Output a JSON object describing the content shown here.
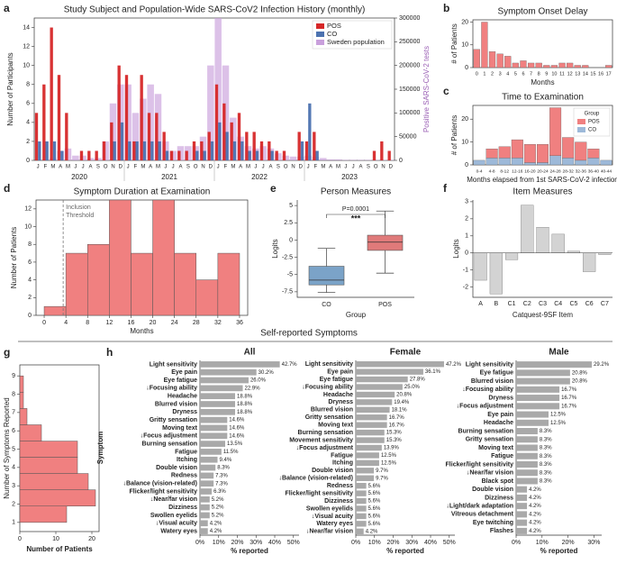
{
  "section_title": "Self-reported Symptoms",
  "chart_data": [
    {
      "panel": "a",
      "type": "bar",
      "title": "Study Subject and Population-Wide SARS-CoV2 Infection History (monthly)",
      "categories": [
        "J",
        "F",
        "M",
        "A",
        "M",
        "J",
        "J",
        "A",
        "S",
        "O",
        "N",
        "D",
        "J",
        "F",
        "M",
        "A",
        "M",
        "J",
        "J",
        "A",
        "S",
        "O",
        "N",
        "D",
        "J",
        "F",
        "M",
        "A",
        "M",
        "J",
        "J",
        "A",
        "S",
        "O",
        "N",
        "D",
        "J",
        "F",
        "M",
        "A",
        "M",
        "J",
        "J",
        "A",
        "S",
        "O",
        "N",
        "D"
      ],
      "group_labels": [
        "2020",
        "2021",
        "2022",
        "2023"
      ],
      "series": [
        {
          "name": "POS",
          "color": "#d62728",
          "values": [
            5,
            8,
            14,
            9,
            5,
            0,
            1,
            1,
            1,
            2,
            4,
            10,
            9,
            2,
            9,
            5,
            5,
            3,
            1,
            1,
            1,
            2,
            2,
            3,
            8,
            6,
            4,
            5,
            3,
            3,
            2,
            2,
            1,
            1,
            0,
            3,
            2,
            3,
            0,
            0,
            0,
            0,
            0,
            0,
            0,
            1,
            2,
            1
          ]
        },
        {
          "name": "CO",
          "color": "#4c72b0",
          "values": [
            2,
            2,
            2,
            1,
            0,
            0,
            0,
            0,
            0,
            0,
            2,
            4,
            2,
            2,
            2,
            2,
            2,
            1,
            0,
            0,
            0,
            1,
            1,
            2,
            4,
            3,
            2,
            2,
            1,
            1,
            0,
            1,
            0,
            0,
            0,
            2,
            6,
            1,
            0,
            0,
            0,
            0,
            0,
            0,
            0,
            0,
            0,
            0
          ]
        },
        {
          "name": "Sweden population",
          "color": "#c9a0dc",
          "axis": "y2",
          "values": [
            0,
            0,
            5000,
            20000,
            25000,
            10000,
            10000,
            5000,
            5000,
            40000,
            120000,
            160000,
            160000,
            100000,
            130000,
            160000,
            140000,
            40000,
            20000,
            30000,
            30000,
            30000,
            50000,
            200000,
            300000,
            200000,
            90000,
            50000,
            30000,
            25000,
            30000,
            25000,
            15000,
            10000,
            8000,
            8000,
            10000,
            7000,
            5000,
            2000,
            2000,
            1000,
            1000,
            1000,
            1000,
            1000,
            1000,
            1000
          ]
        }
      ],
      "ylabel": "Number of Participants",
      "y2label": "Positive SARS-CoV-2 tests",
      "ylim": [
        0,
        15
      ],
      "yticks": [
        0,
        2,
        4,
        6,
        8,
        10,
        12,
        14
      ],
      "y2lim": [
        0,
        300000
      ],
      "y2ticks": [
        0,
        50000,
        100000,
        150000,
        200000,
        250000,
        300000
      ],
      "legend": "upper right"
    },
    {
      "panel": "b",
      "type": "bar",
      "title": "Symptom Onset Delay",
      "categories": [
        "0",
        "1",
        "2",
        "3",
        "4",
        "5",
        "6",
        "7",
        "8",
        "9",
        "10",
        "11",
        "12",
        "13",
        "14",
        "15",
        "16",
        "17"
      ],
      "values": [
        8,
        20,
        7,
        6,
        5,
        2,
        3,
        2,
        2,
        1,
        1,
        2,
        2,
        1,
        1,
        0,
        0,
        1
      ],
      "color": "#f08080",
      "xlabel": "Months",
      "ylabel": "# of Patients",
      "ylim": [
        0,
        21
      ],
      "yticks": [
        0,
        10,
        20
      ]
    },
    {
      "panel": "c",
      "type": "bar",
      "stacked": true,
      "title": "Time to Examination",
      "categories": [
        "0-4",
        "4-8",
        "8-12",
        "12-16",
        "16-20",
        "20-24",
        "24-28",
        "28-32",
        "32-36",
        "36-40",
        "40-44"
      ],
      "series": [
        {
          "name": "POS",
          "color": "#f08080",
          "values": [
            0,
            4,
            5,
            8,
            8,
            8,
            21,
            9,
            8,
            4,
            0
          ]
        },
        {
          "name": "CO",
          "color": "#9db9d9",
          "values": [
            2,
            3,
            3,
            3,
            1,
            1,
            4,
            3,
            2,
            3,
            2
          ]
        }
      ],
      "legend_title": "Group",
      "legend": "upper right",
      "xlabel": "Months elapsed from 1st SARS-CoV-2 infection",
      "ylabel": "# of Patients",
      "ylim": [
        0,
        26
      ],
      "yticks": [
        0,
        10,
        20
      ]
    },
    {
      "panel": "d",
      "type": "histogram",
      "title": "Symptom Duration at Examination",
      "bins": [
        0,
        4,
        8,
        12,
        16,
        20,
        24,
        28,
        32,
        36
      ],
      "values": [
        1,
        7,
        8,
        13,
        7,
        13,
        7,
        4,
        7
      ],
      "color": "#f08080",
      "threshold": {
        "value": 3.5,
        "label": [
          "Inclusion",
          "Threshold"
        ]
      },
      "xlabel": "Months",
      "ylabel": "Number of Patients",
      "xlim": [
        -1.5,
        37.5
      ],
      "xticks": [
        0,
        4,
        8,
        12,
        16,
        20,
        24,
        28,
        32,
        36
      ],
      "ylim": [
        0,
        13
      ],
      "yticks": [
        0,
        2,
        4,
        6,
        8,
        10,
        12
      ]
    },
    {
      "panel": "e",
      "type": "box",
      "title": "Person Measures",
      "categories": [
        "CO",
        "POS"
      ],
      "boxes": [
        {
          "min": -7.6,
          "q1": -6.5,
          "median": -5.8,
          "q3": -3.8,
          "max": -1.2,
          "color": "#7ba3c8"
        },
        {
          "min": -4.8,
          "q1": -1.5,
          "median": -0.3,
          "q3": 0.7,
          "max": 4.2,
          "color": "#e07a7a"
        }
      ],
      "annotation": "P=0.0001",
      "significance": "***",
      "xlabel": "Group",
      "ylabel": "Logits",
      "ylim": [
        -8.3,
        5.8
      ],
      "yticks": [
        -7.5,
        -5.0,
        -2.5,
        0.0,
        2.5,
        5.0
      ]
    },
    {
      "panel": "f",
      "type": "bar",
      "title": "Item Measures",
      "categories": [
        "A",
        "B",
        "C1",
        "C2",
        "C3",
        "C4",
        "C5",
        "C6",
        "C7"
      ],
      "values": [
        -1.6,
        -2.4,
        -0.4,
        2.8,
        1.5,
        1.1,
        0.1,
        -1.1,
        -0.1
      ],
      "color": "#d3d3d3",
      "xlabel": "Catquest-9SF Item",
      "ylabel": "Logits",
      "ylim": [
        -2.6,
        3.1
      ],
      "yticks": [
        -2,
        -1,
        0,
        1,
        2,
        3
      ]
    },
    {
      "panel": "g",
      "type": "histogram",
      "orientation": "horizontal",
      "bins": [
        1,
        1.89,
        2.78,
        3.67,
        4.56,
        5.44,
        6.33,
        7.22,
        8.11,
        9
      ],
      "values": [
        13,
        21,
        19,
        16,
        16,
        6,
        2,
        1,
        1
      ],
      "color": "#f08080",
      "xlabel": "Number of Patients",
      "ylabel": "Number of Symptoms Reported",
      "xlim": [
        0,
        22
      ],
      "xticks": [
        0,
        10,
        20
      ],
      "ylim": [
        0.5,
        9.6
      ],
      "yticks": [
        1,
        2,
        3,
        4,
        5,
        6,
        7,
        8,
        9
      ]
    },
    {
      "panel": "h",
      "type": "hbar",
      "title": "All",
      "color": "#a9a9a9",
      "ylabel": "Symptom",
      "xlabel": "% reported",
      "categories": [
        "Light sensitivity",
        "Eye pain",
        "Eye fatigue",
        "↓Focusing ability",
        "Headache",
        "Blurred vision",
        "Dryness",
        "Gritty sensation",
        "Moving text",
        "↓Focus adjustment",
        "Burning sensation",
        "Fatigue",
        "Itching",
        "Double vision",
        "Redness",
        "↓Balance (vision-related)",
        "Flicker/light sensitivity",
        "↓Near/far vision",
        "Dizziness",
        "Swollen eyelids",
        "↓Visual acuity",
        "Watery eyes"
      ],
      "values": [
        42.7,
        30.2,
        26.0,
        22.9,
        18.8,
        18.8,
        18.8,
        14.6,
        14.6,
        14.6,
        13.5,
        11.5,
        9.4,
        8.3,
        7.3,
        7.3,
        6.3,
        5.2,
        5.2,
        5.2,
        4.2,
        4.2
      ],
      "value_labels": [
        "42.7%",
        "30.2%",
        "26.0%",
        "22.9%",
        "18.8%",
        "18.8%",
        "18.8%",
        "14.6%",
        "14.6%",
        "14.6%",
        "13.5%",
        "11.5%",
        "9.4%",
        "8.3%",
        "7.3%",
        "7.3%",
        "6.3%",
        "5.2%",
        "5.2%",
        "5.2%",
        "4.2%",
        "4.2%"
      ],
      "xlim": [
        0,
        53
      ],
      "xticks": [
        {
          "value": 0,
          "label": "0%"
        },
        {
          "value": 10,
          "label": "10%"
        },
        {
          "value": 20,
          "label": "20%"
        },
        {
          "value": 30,
          "label": "30%"
        },
        {
          "value": 40,
          "label": "40%"
        },
        {
          "value": 50,
          "label": "50%"
        }
      ]
    },
    {
      "type": "hbar",
      "title": "Female",
      "color": "#a9a9a9",
      "xlabel": "% reported",
      "categories": [
        "Light sensitivity",
        "Eye pain",
        "Eye fatigue",
        "↓Focusing ability",
        "Headache",
        "Dryness",
        "Blurred vision",
        "Gritty sensation",
        "Moving text",
        "Burning sensation",
        "Movement sensitivity",
        "↓Focus adjustment",
        "Fatigue",
        "Itching",
        "Double vision",
        "↓Balance (vision-related)",
        "Redness",
        "Flicker/light sensitivity",
        "Dizziness",
        "Swollen eyelids",
        "↓Visual acuity",
        "Watery eyes",
        "↓Near/far vision"
      ],
      "values": [
        47.2,
        36.1,
        27.8,
        25.0,
        20.8,
        19.4,
        18.1,
        16.7,
        16.7,
        15.3,
        15.3,
        13.9,
        12.5,
        12.5,
        9.7,
        9.7,
        5.6,
        5.6,
        5.6,
        5.6,
        5.6,
        5.6,
        4.2
      ],
      "value_labels": [
        "47.2%",
        "36.1%",
        "27.8%",
        "25.0%",
        "20.8%",
        "19.4%",
        "18.1%",
        "16.7%",
        "16.7%",
        "15.3%",
        "15.3%",
        "13.9%",
        "12.5%",
        "12.5%",
        "9.7%",
        "9.7%",
        "5.6%",
        "5.6%",
        "5.6%",
        "5.6%",
        "5.6%",
        "5.6%",
        "4.2%"
      ],
      "xlim": [
        0,
        53
      ],
      "xticks": [
        {
          "value": 0,
          "label": "0%"
        },
        {
          "value": 10,
          "label": "10%"
        },
        {
          "value": 20,
          "label": "20%"
        },
        {
          "value": 30,
          "label": "30%"
        },
        {
          "value": 40,
          "label": "40%"
        },
        {
          "value": 50,
          "label": "50%"
        }
      ]
    },
    {
      "type": "hbar",
      "title": "Male",
      "color": "#a9a9a9",
      "xlabel": "% reported",
      "categories": [
        "Light sensitivity",
        "Eye fatigue",
        "Blurred vision",
        "↓Focusing ability",
        "Dryness",
        "↓Focus adjustment",
        "Eye pain",
        "Headache",
        "Burning sensation",
        "Gritty sensation",
        "Moving text",
        "Fatigue",
        "Flicker/light sensitivity",
        "↓Near/far vision",
        "Black spot",
        "Double vision",
        "Dizziness",
        "↓Light/dark adaptation",
        "Vitreous detachment",
        "Eye twitching",
        "Flashes"
      ],
      "values": [
        29.2,
        20.8,
        20.8,
        16.7,
        16.7,
        16.7,
        12.5,
        12.5,
        8.3,
        8.3,
        8.3,
        8.3,
        8.3,
        8.3,
        8.3,
        4.2,
        4.2,
        4.2,
        4.2,
        4.2,
        4.2
      ],
      "value_labels": [
        "29.2%",
        "20.8%",
        "20.8%",
        "16.7%",
        "16.7%",
        "16.7%",
        "12.5%",
        "12.5%",
        "8.3%",
        "8.3%",
        "8.3%",
        "8.3%",
        "8.3%",
        "8.3%",
        "8.3%",
        "4.2%",
        "4.2%",
        "4.2%",
        "4.2%",
        "4.2%",
        "4.2%"
      ],
      "xlim": [
        0,
        33
      ],
      "xticks": [
        {
          "value": 0,
          "label": "0%"
        },
        {
          "value": 10,
          "label": "10%"
        },
        {
          "value": 20,
          "label": "20%"
        },
        {
          "value": 30,
          "label": "30%"
        }
      ]
    }
  ]
}
